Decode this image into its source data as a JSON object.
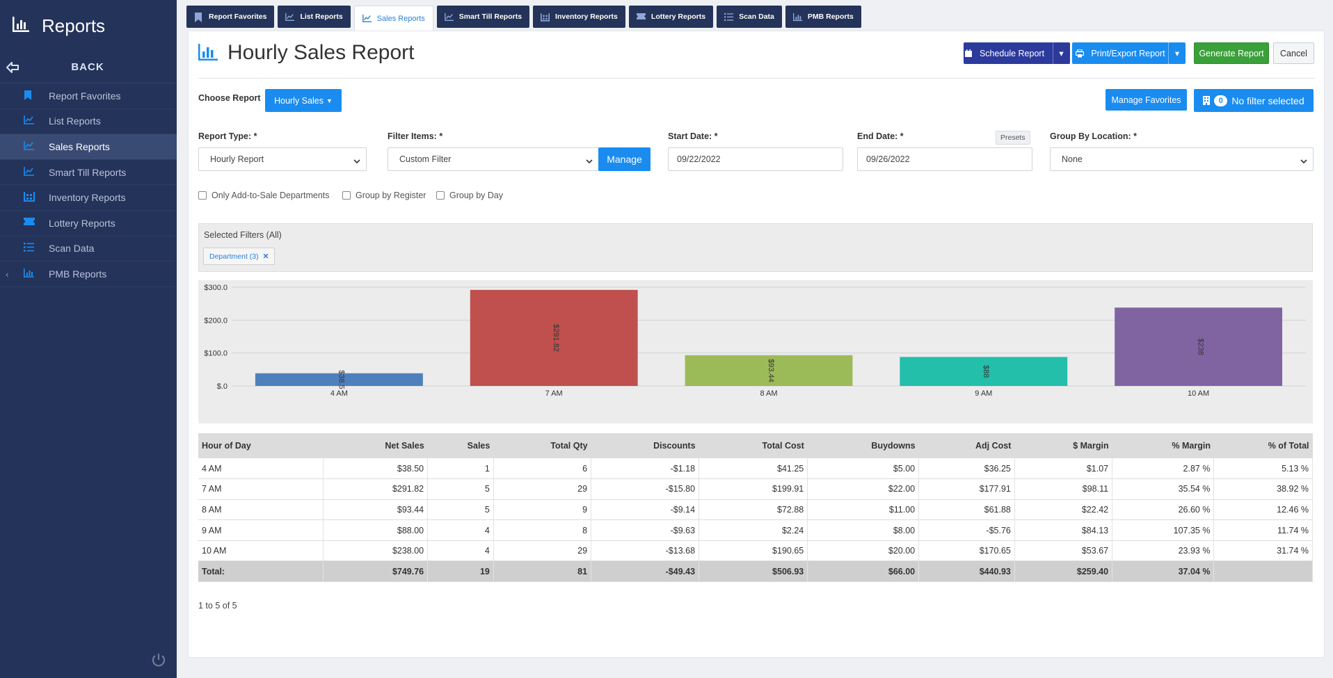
{
  "app": {
    "title": "Reports",
    "back_label": "BACK"
  },
  "sidebar": {
    "items": [
      {
        "label": "Report Favorites",
        "icon": "bookmark-icon"
      },
      {
        "label": "List Reports",
        "icon": "line-chart-icon"
      },
      {
        "label": "Sales Reports",
        "icon": "line-chart-icon",
        "active": true
      },
      {
        "label": "Smart Till Reports",
        "icon": "line-chart-icon"
      },
      {
        "label": "Inventory Reports",
        "icon": "inventory-icon"
      },
      {
        "label": "Lottery Reports",
        "icon": "ticket-icon"
      },
      {
        "label": "Scan Data",
        "icon": "list-icon"
      },
      {
        "label": "PMB Reports",
        "icon": "bar-chart-icon"
      }
    ]
  },
  "tabs": [
    {
      "label": "Report Favorites",
      "icon": "bookmark-icon"
    },
    {
      "label": "List Reports",
      "icon": "line-chart-icon"
    },
    {
      "label": "Sales Reports",
      "icon": "line-chart-icon",
      "active": true
    },
    {
      "label": "Smart Till Reports",
      "icon": "line-chart-icon"
    },
    {
      "label": "Inventory Reports",
      "icon": "inventory-icon"
    },
    {
      "label": "Lottery Reports",
      "icon": "ticket-icon"
    },
    {
      "label": "Scan Data",
      "icon": "list-icon"
    },
    {
      "label": "PMB Reports",
      "icon": "bar-chart-icon"
    }
  ],
  "header": {
    "title": "Hourly Sales Report",
    "schedule_label": "Schedule Report",
    "print_label": "Print/Export Report",
    "generate_label": "Generate Report",
    "cancel_label": "Cancel"
  },
  "choose": {
    "label": "Choose Report",
    "value": "Hourly Sales",
    "manage_favorites": "Manage Favorites",
    "filter_count": "0",
    "filter_status": "No filter selected"
  },
  "form": {
    "report_type_label": "Report Type: *",
    "report_type_value": "Hourly Report",
    "filter_items_label": "Filter Items: *",
    "filter_items_value": "Custom Filter",
    "manage_label": "Manage",
    "start_label": "Start Date: *",
    "start_value": "09/22/2022",
    "end_label": "End Date: *",
    "end_value": "09/26/2022",
    "presets_label": "Presets",
    "group_location_label": "Group By Location: *",
    "group_location_value": "None"
  },
  "checkboxes": {
    "add_to_sale": "Only Add-to-Sale Departments",
    "by_register": "Group by Register",
    "by_day": "Group by Day"
  },
  "filters": {
    "title": "Selected Filters (All)",
    "chip": "Department (3)"
  },
  "chart_data": {
    "type": "bar",
    "categories": [
      "4 AM",
      "7 AM",
      "8 AM",
      "9 AM",
      "10 AM"
    ],
    "values": [
      38.5,
      291.82,
      93.44,
      88,
      238
    ],
    "value_labels": [
      "$38.5",
      "$291.82",
      "$93.44",
      "$88",
      "$238"
    ],
    "colors": [
      "#4e80bd",
      "#c0504d",
      "#9bbb59",
      "#23bfaa",
      "#8064a2"
    ],
    "ylim": [
      0,
      300
    ],
    "yticks": [
      0,
      100,
      200,
      300
    ],
    "ytick_labels": [
      "$.0",
      "$100.0",
      "$200.0",
      "$300.0"
    ],
    "grid": true
  },
  "table": {
    "columns": [
      "Hour of Day",
      "Net Sales",
      "Sales",
      "Total Qty",
      "Discounts",
      "Total Cost",
      "Buydowns",
      "Adj Cost",
      "$ Margin",
      "% Margin",
      "% of Total"
    ],
    "rows": [
      [
        "4 AM",
        "$38.50",
        "1",
        "6",
        "-$1.18",
        "$41.25",
        "$5.00",
        "$36.25",
        "$1.07",
        "2.87 %",
        "5.13 %"
      ],
      [
        "7 AM",
        "$291.82",
        "5",
        "29",
        "-$15.80",
        "$199.91",
        "$22.00",
        "$177.91",
        "$98.11",
        "35.54 %",
        "38.92 %"
      ],
      [
        "8 AM",
        "$93.44",
        "5",
        "9",
        "-$9.14",
        "$72.88",
        "$11.00",
        "$61.88",
        "$22.42",
        "26.60 %",
        "12.46 %"
      ],
      [
        "9 AM",
        "$88.00",
        "4",
        "8",
        "-$9.63",
        "$2.24",
        "$8.00",
        "-$5.76",
        "$84.13",
        "107.35 %",
        "11.74 %"
      ],
      [
        "10 AM",
        "$238.00",
        "4",
        "29",
        "-$13.68",
        "$190.65",
        "$20.00",
        "$170.65",
        "$53.67",
        "23.93 %",
        "31.74 %"
      ]
    ],
    "total": [
      "Total:",
      "$749.76",
      "19",
      "81",
      "-$49.43",
      "$506.93",
      "$66.00",
      "$440.93",
      "$259.40",
      "37.04 %",
      ""
    ]
  },
  "pager": "1 to 5 of 5"
}
